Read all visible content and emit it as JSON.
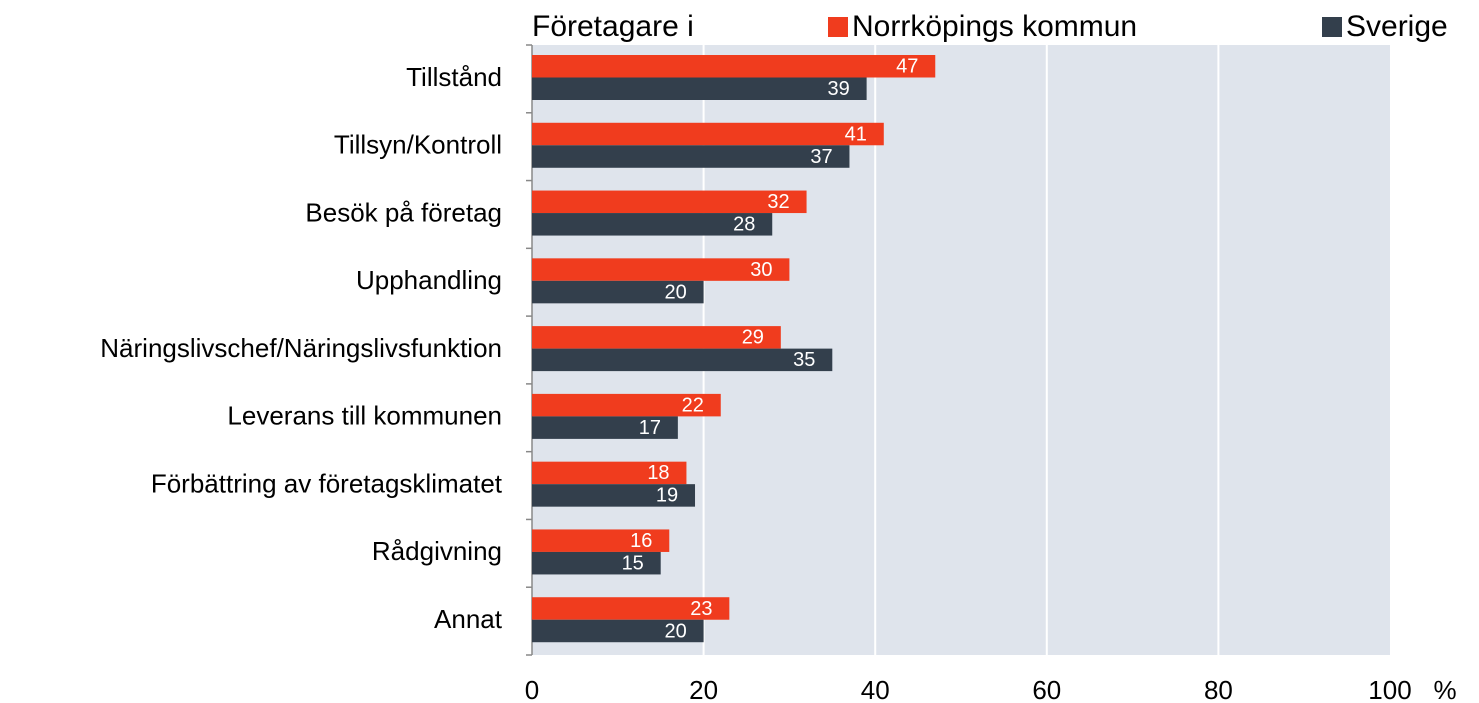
{
  "chart_data": {
    "type": "bar",
    "orientation": "horizontal",
    "legend_title": "Företagare i",
    "categories": [
      "Tillstånd",
      "Tillsyn/Kontroll",
      "Besök på företag",
      "Upphandling",
      "Näringslivschef/Näringslivsfunktion",
      "Leverans till kommunen",
      "Förbättring av företagsklimatet",
      "Rådgivning",
      "Annat"
    ],
    "series": [
      {
        "name": "Norrköpings kommun",
        "color": "#f03c1e",
        "values": [
          47,
          41,
          32,
          30,
          29,
          22,
          18,
          16,
          23
        ]
      },
      {
        "name": "Sverige",
        "color": "#333f4c",
        "values": [
          39,
          37,
          28,
          20,
          35,
          17,
          19,
          15,
          20
        ]
      }
    ],
    "xlim": [
      0,
      100
    ],
    "xticks": [
      0,
      20,
      40,
      60,
      80,
      100
    ],
    "xlabel": "%",
    "grid": true,
    "legend": "top",
    "plot_background": "#dfe4ec"
  }
}
